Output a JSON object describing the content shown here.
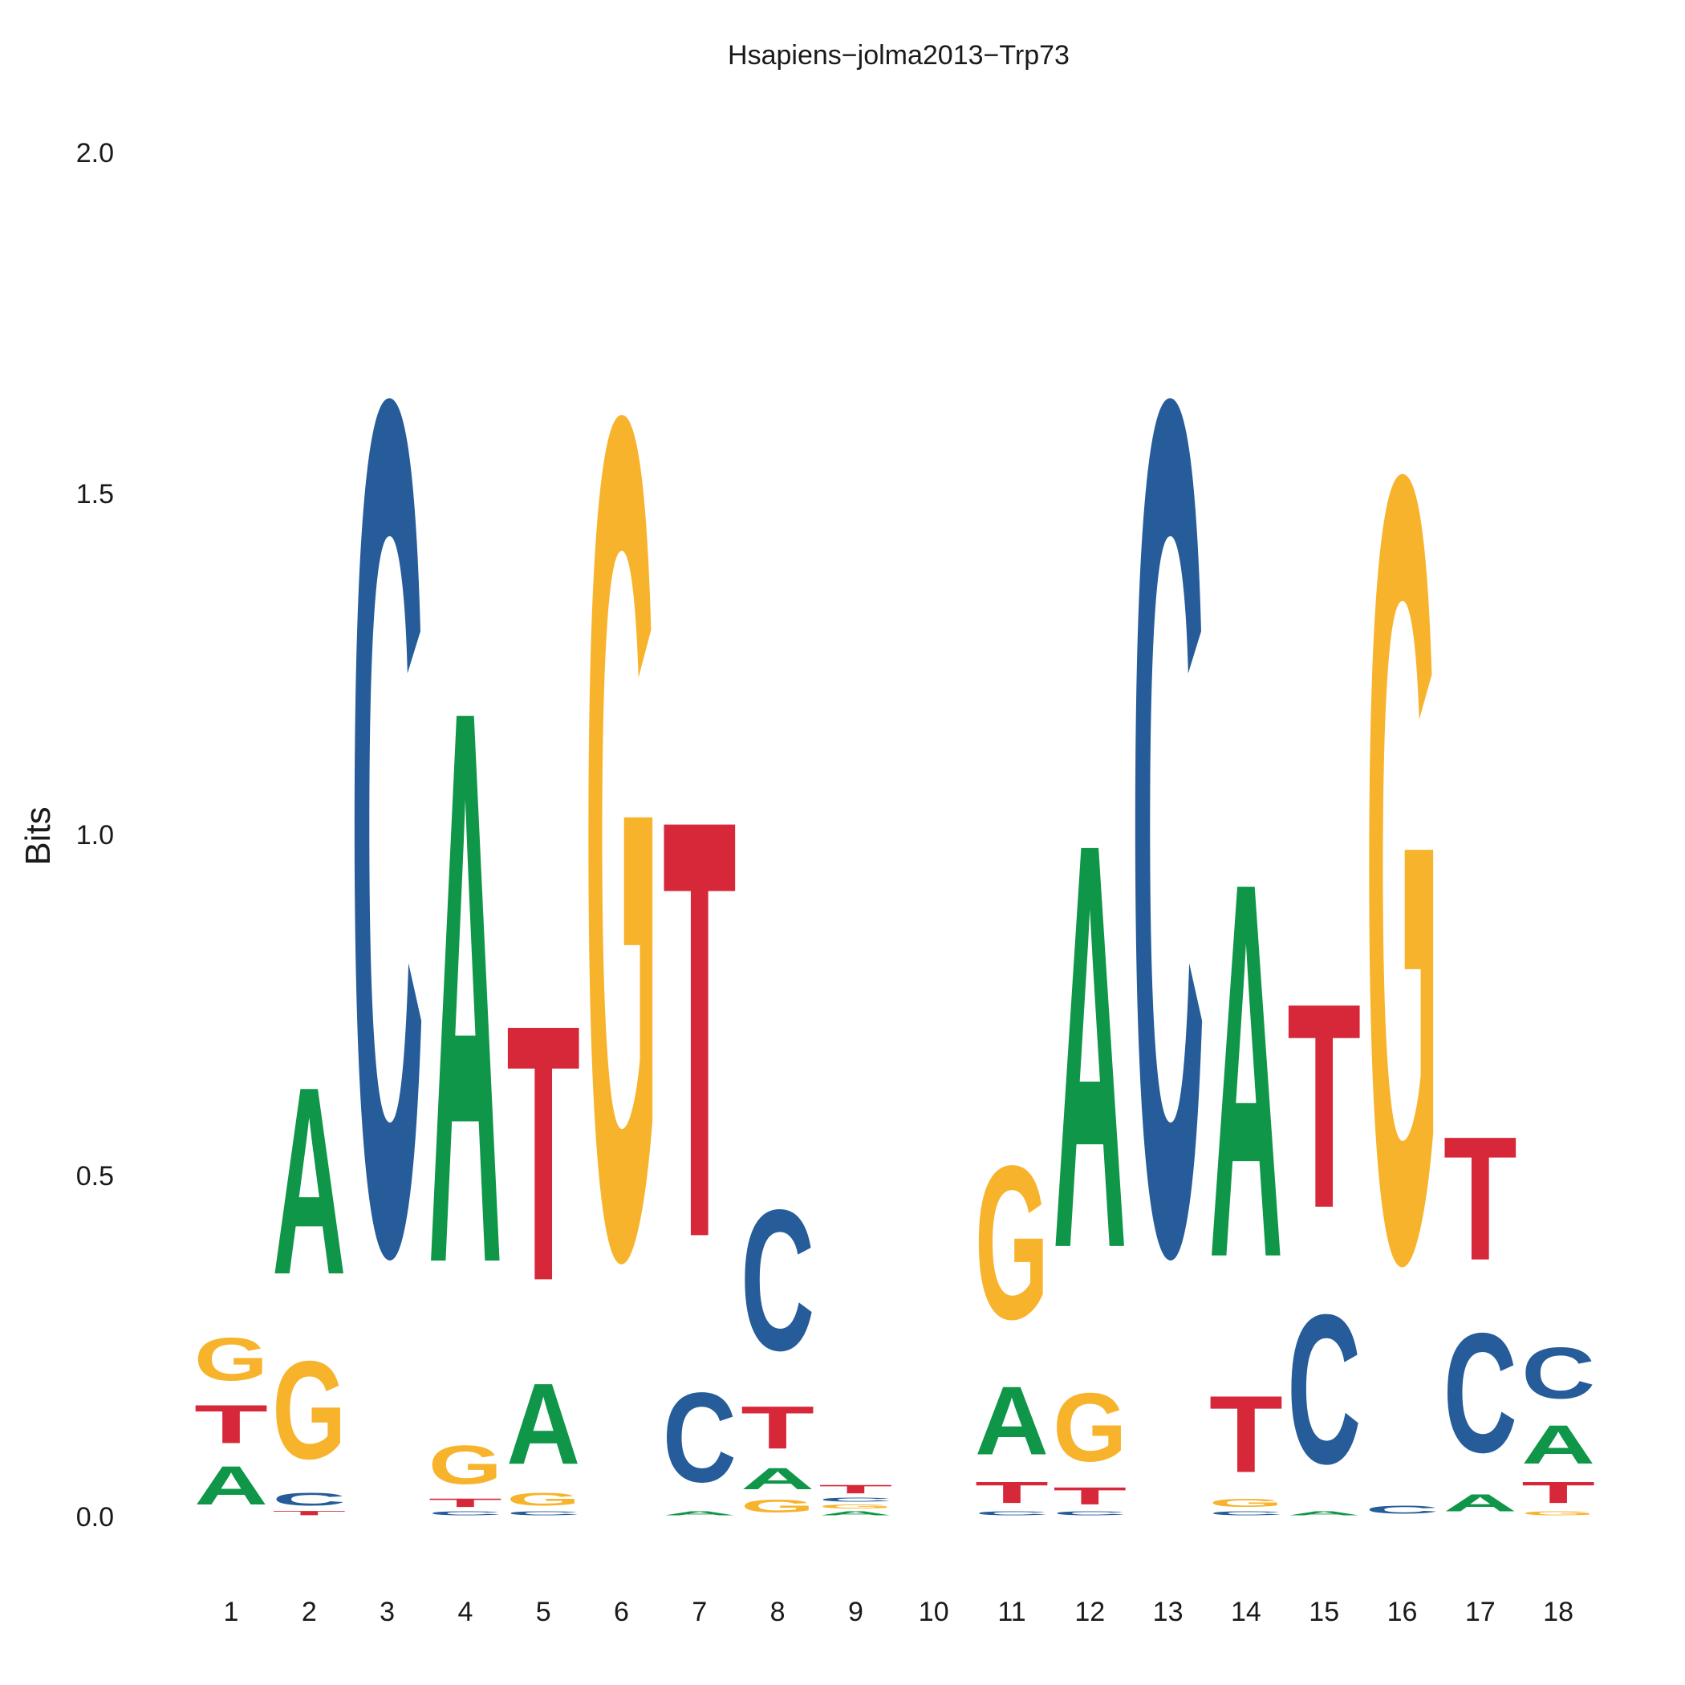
{
  "chart_data": {
    "type": "sequence-logo",
    "title": "Hsapiens−jolma2013−Trp73",
    "ylabel": "Bits",
    "xlabel": "",
    "ylim": [
      0,
      2
    ],
    "yticks": [
      "0.0",
      "0.5",
      "1.0",
      "1.5",
      "2.0"
    ],
    "ytick_values": [
      0,
      0.5,
      1.0,
      1.5,
      2.0
    ],
    "grid": false,
    "colors": {
      "A": "#109648",
      "C": "#255C99",
      "G": "#F7B32B",
      "T": "#D62839"
    },
    "positions": [
      {
        "pos": "1",
        "letters": [
          [
            "A",
            0.09
          ],
          [
            "T",
            0.09
          ],
          [
            "G",
            0.1
          ]
        ]
      },
      {
        "pos": "2",
        "letters": [
          [
            "T",
            0.01
          ],
          [
            "C",
            0.03
          ],
          [
            "G",
            0.23
          ],
          [
            "A",
            0.44
          ]
        ]
      },
      {
        "pos": "3",
        "letters": [
          [
            "C",
            2.0
          ]
        ]
      },
      {
        "pos": "4",
        "letters": [
          [
            "C",
            0.01
          ],
          [
            "T",
            0.02
          ],
          [
            "G",
            0.09
          ],
          [
            "A",
            1.3
          ]
        ]
      },
      {
        "pos": "5",
        "letters": [
          [
            "C",
            0.01
          ],
          [
            "G",
            0.03
          ],
          [
            "A",
            0.19
          ],
          [
            "T",
            0.6
          ]
        ]
      },
      {
        "pos": "6",
        "letters": [
          [
            "G",
            1.97
          ]
        ]
      },
      {
        "pos": "7",
        "letters": [
          [
            "A",
            0.01
          ],
          [
            "C",
            0.21
          ],
          [
            "T",
            0.98
          ]
        ]
      },
      {
        "pos": "8",
        "letters": [
          [
            "G",
            0.03
          ],
          [
            "A",
            0.05
          ],
          [
            "T",
            0.1
          ],
          [
            "C",
            0.33
          ]
        ]
      },
      {
        "pos": "9",
        "letters": [
          [
            "A",
            0.01
          ],
          [
            "G",
            0.01
          ],
          [
            "C",
            0.01
          ],
          [
            "T",
            0.02
          ]
        ]
      },
      {
        "pos": "10",
        "letters": []
      },
      {
        "pos": "11",
        "letters": [
          [
            "C",
            0.01
          ],
          [
            "T",
            0.05
          ],
          [
            "A",
            0.16
          ],
          [
            "G",
            0.36
          ]
        ]
      },
      {
        "pos": "12",
        "letters": [
          [
            "C",
            0.01
          ],
          [
            "T",
            0.04
          ],
          [
            "G",
            0.16
          ],
          [
            "A",
            0.95
          ]
        ]
      },
      {
        "pos": "13",
        "letters": [
          [
            "C",
            2.0
          ]
        ]
      },
      {
        "pos": "14",
        "letters": [
          [
            "C",
            0.01
          ],
          [
            "G",
            0.02
          ],
          [
            "T",
            0.18
          ],
          [
            "A",
            0.88
          ]
        ]
      },
      {
        "pos": "15",
        "letters": [
          [
            "A",
            0.01
          ],
          [
            "C",
            0.35
          ],
          [
            "T",
            0.48
          ]
        ]
      },
      {
        "pos": "16",
        "letters": [
          [
            "C",
            0.02
          ],
          [
            "G",
            1.84
          ]
        ]
      },
      {
        "pos": "17",
        "letters": [
          [
            "A",
            0.04
          ],
          [
            "C",
            0.28
          ],
          [
            "T",
            0.29
          ]
        ]
      },
      {
        "pos": "18",
        "letters": [
          [
            "G",
            0.01
          ],
          [
            "T",
            0.05
          ],
          [
            "A",
            0.09
          ],
          [
            "C",
            0.12
          ]
        ]
      }
    ]
  }
}
